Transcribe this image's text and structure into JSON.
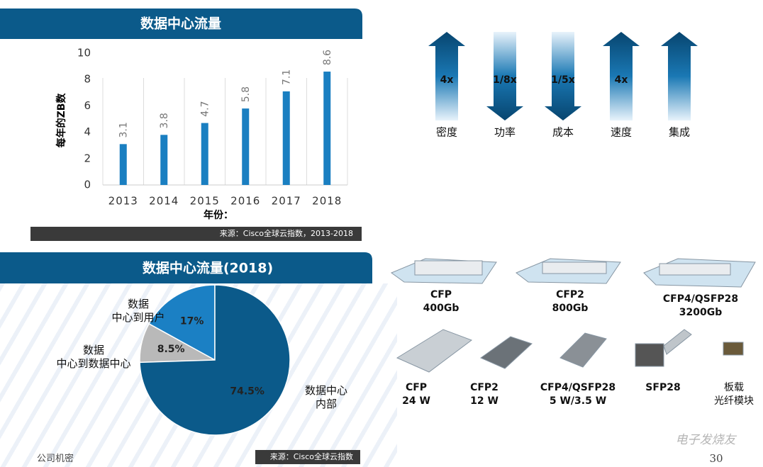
{
  "chart_data": [
    {
      "type": "bar",
      "title": "数据中心流量",
      "categories": [
        "2013",
        "2014",
        "2015",
        "2016",
        "2017",
        "2018"
      ],
      "values": [
        3.1,
        3.8,
        4.7,
        5.8,
        7.1,
        8.6
      ],
      "color": "#1a7fc1",
      "ylabel": "每年的ZB数",
      "xlabel": "年份：",
      "ylim": [
        0,
        10
      ],
      "yticks": [
        0,
        2,
        4,
        6,
        8,
        10
      ],
      "source": "来源：Cisco全球云指数，2013-2018"
    },
    {
      "type": "pie",
      "title": "数据中心流量(2018)",
      "categories": [
        "数据\n中心到用户",
        "数据\n中心到数据中心",
        "数据中心\n内部"
      ],
      "values": [
        17,
        8.5,
        74.5
      ],
      "value_labels": [
        "17%",
        "8.5%",
        "74.5%"
      ],
      "colors": [
        "#1b80c4",
        "#b9b9b9",
        "#0b5a8a"
      ],
      "source": "来源：Cisco全球云指数"
    }
  ],
  "arrows": [
    {
      "label": "密度",
      "value_text": "4x",
      "direction": "up"
    },
    {
      "label": "功率",
      "value_text": "1/8x",
      "direction": "down"
    },
    {
      "label": "成本",
      "value_text": "1/5x",
      "direction": "down"
    },
    {
      "label": "速度",
      "value_text": "4x",
      "direction": "up"
    },
    {
      "label": "集成",
      "direction": "up"
    }
  ],
  "modules": {
    "top": [
      "CFP\n400Gb",
      "CFP2\n800Gb",
      "CFP4/QSFP28\n3200Gb"
    ],
    "bottom": [
      "CFP\n24 W",
      "CFP2\n12 W",
      "CFP4/QSFP28\n5 W/3.5 W",
      "SFP28",
      "板载\n光纤模块"
    ]
  },
  "footer": {
    "confidential": "公司机密",
    "page": "30",
    "watermark": "电子发烧友"
  }
}
